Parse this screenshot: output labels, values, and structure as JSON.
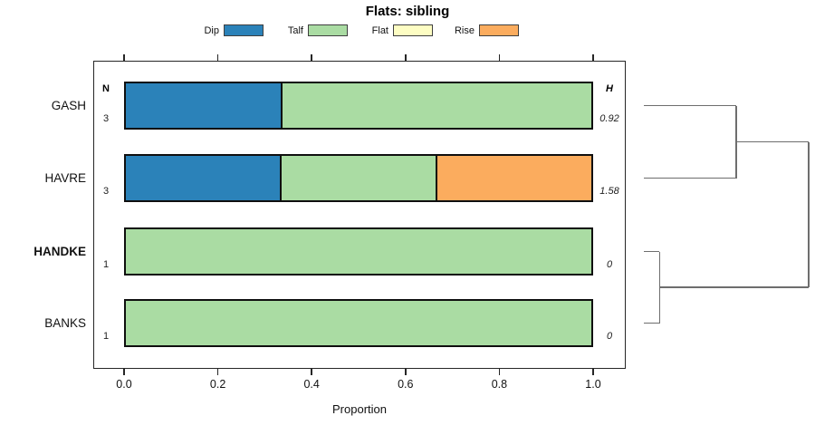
{
  "title": "Flats: sibling",
  "legend": {
    "position": "top",
    "items": [
      {
        "label": "Dip",
        "color": "#2B82B9"
      },
      {
        "label": "Talf",
        "color": "#AADCA3"
      },
      {
        "label": "Flat",
        "color": "#FDFDC3"
      },
      {
        "label": "Rise",
        "color": "#FBAC5E"
      }
    ]
  },
  "chart_data": {
    "type": "bar",
    "orientation": "horizontal-stacked",
    "title": "Flats: sibling",
    "xlabel": "Proportion",
    "xlim": [
      0,
      1
    ],
    "xticks": [
      0.0,
      0.2,
      0.4,
      0.6,
      0.8,
      1.0
    ],
    "xtick_labels": [
      "0.0",
      "0.2",
      "0.4",
      "0.6",
      "0.8",
      "1.0"
    ],
    "grid": false,
    "categories": [
      "GASH",
      "HAVRE",
      "HANDKE",
      "BANKS"
    ],
    "emphasized_category": "HANDKE",
    "series": [
      {
        "name": "Dip",
        "color": "#2B82B9",
        "values": [
          0.333,
          0.333,
          0,
          0
        ]
      },
      {
        "name": "Talf",
        "color": "#AADCA3",
        "values": [
          0.667,
          0.334,
          1.0,
          1.0
        ]
      },
      {
        "name": "Flat",
        "color": "#FDFDC3",
        "values": [
          0,
          0,
          0,
          0
        ]
      },
      {
        "name": "Rise",
        "color": "#FBAC5E",
        "values": [
          0,
          0.333,
          0,
          0
        ]
      }
    ],
    "n_header": "N",
    "n_values": [
      "3",
      "3",
      "1",
      "1"
    ],
    "h_header": "H",
    "h_values": [
      "0.92",
      "1.58",
      "0",
      "0"
    ],
    "dendrogram": {
      "side": "right",
      "line_color": "#6e6e6e",
      "merges": [
        {
          "members": [
            "HANDKE",
            "BANKS"
          ],
          "relative_height": 0.095
        },
        {
          "members": [
            "GASH",
            "HAVRE"
          ],
          "relative_height": 0.56
        },
        {
          "members": [
            "GASH+HAVRE",
            "HANDKE+BANKS"
          ],
          "relative_height": 1.0
        }
      ]
    }
  }
}
